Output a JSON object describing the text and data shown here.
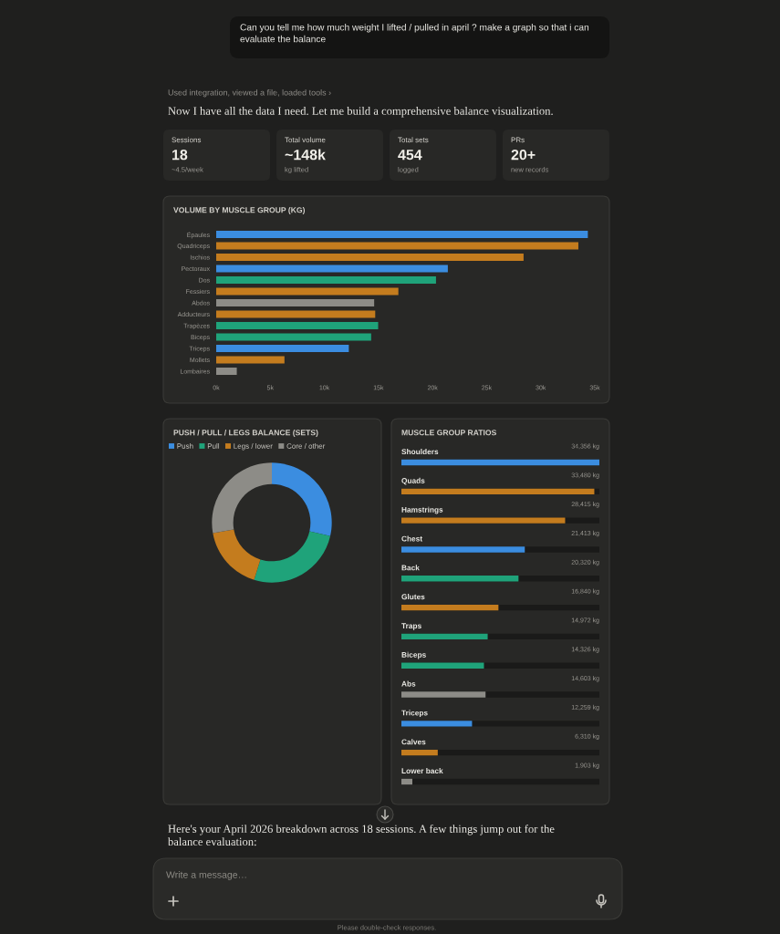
{
  "chart_data": [
    {
      "type": "other",
      "annotations": [
        "Can you tell me how much weight I lifted / pulled in april ? make a graph so that i can evaluate the balance",
        "Used integration, viewed a file, loaded tools ›",
        "Now I have all the data I need. Let me build a comprehensive balance visualization.",
        "Here's your April 2026 breakdown across 18 sessions. A few things jump out for the balance evaluation:",
        "Write a message…",
        "Please double-check responses."
      ]
    },
    {
      "type": "other",
      "categories": [
        "Sessions",
        "Total volume",
        "Total sets",
        "PRs"
      ],
      "value_labels": [
        "18",
        "~148k",
        "454",
        "20+"
      ],
      "annotations": [
        "~4.5/week",
        "kg lifted",
        "logged",
        "new records"
      ]
    },
    {
      "type": "bar",
      "orientation": "horizontal",
      "title": "VOLUME BY MUSCLE GROUP (KG)",
      "categories": [
        "Épaules",
        "Quadriceps",
        "Ischios",
        "Pectoraux",
        "Dos",
        "Fessiers",
        "Abdos",
        "Adducteurs",
        "Trapèzes",
        "Biceps",
        "Triceps",
        "Mollets",
        "Lombaires"
      ],
      "values": [
        34356,
        33480,
        28415,
        21413,
        20320,
        16840,
        14603,
        14700,
        14972,
        14326,
        12259,
        6310,
        1903
      ],
      "colors": [
        "#3b8de0",
        "#c47c1e",
        "#c47c1e",
        "#3b8de0",
        "#1fa37a",
        "#c47c1e",
        "#8d8c87",
        "#c47c1e",
        "#1fa37a",
        "#1fa37a",
        "#3b8de0",
        "#c47c1e",
        "#8d8c87"
      ],
      "xlim": [
        0,
        35000
      ],
      "xticks": [
        {
          "value": 0,
          "label": "0k"
        },
        {
          "value": 5000,
          "label": "5k"
        },
        {
          "value": 10000,
          "label": "10k"
        },
        {
          "value": 15000,
          "label": "15k"
        },
        {
          "value": 20000,
          "label": "20k"
        },
        {
          "value": 25000,
          "label": "25k"
        },
        {
          "value": 30000,
          "label": "30k"
        },
        {
          "value": 35000,
          "label": "35k"
        }
      ]
    },
    {
      "type": "donut",
      "title": "PUSH / PULL / LEGS BALANCE (SETS)",
      "categories": [
        "Push",
        "Pull",
        "Legs / lower",
        "Core / other"
      ],
      "values": [
        28.6,
        26.2,
        17.4,
        27.8
      ],
      "colors": [
        "#3b8de0",
        "#1fa37a",
        "#c47c1e",
        "#8d8c87"
      ],
      "legend": "top left"
    },
    {
      "type": "bar",
      "orientation": "horizontal",
      "title": "MUSCLE GROUP RATIOS",
      "categories": [
        "Shoulders",
        "Quads",
        "Hamstrings",
        "Chest",
        "Back",
        "Glutes",
        "Traps",
        "Biceps",
        "Abs",
        "Triceps",
        "Calves",
        "Lower back"
      ],
      "values": [
        34356,
        33480,
        28415,
        21413,
        20320,
        16840,
        14972,
        14326,
        14603,
        12259,
        6310,
        1903
      ],
      "colors": [
        "#3b8de0",
        "#c47c1e",
        "#c47c1e",
        "#3b8de0",
        "#1fa37a",
        "#c47c1e",
        "#1fa37a",
        "#1fa37a",
        "#8d8c87",
        "#3b8de0",
        "#c47c1e",
        "#8d8c87"
      ],
      "value_labels": [
        "34,356 kg",
        "33,480 kg",
        "28,415 kg",
        "21,413 kg",
        "20,320 kg",
        "16,840 kg",
        "14,972 kg",
        "14,326 kg",
        "14,603 kg",
        "12,259 kg",
        "6,310 kg",
        "1,903 kg"
      ],
      "xlim": [
        0,
        34356
      ],
      "tick_labels": "y"
    }
  ]
}
